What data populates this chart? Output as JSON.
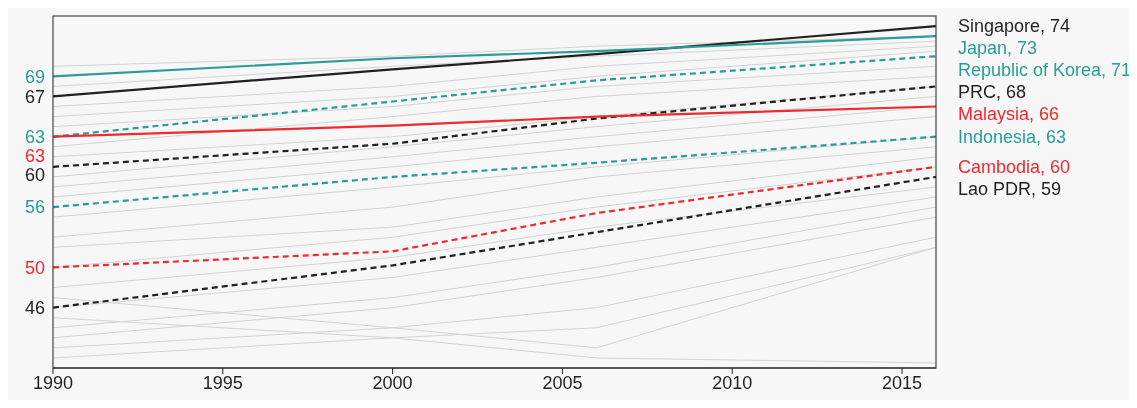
{
  "chart_data": {
    "type": "line",
    "x": [
      1990,
      2000,
      2006,
      2016
    ],
    "xlim": [
      1990,
      2016
    ],
    "xticks": [
      1990,
      1995,
      2000,
      2005,
      2010,
      2015
    ],
    "ylim": [
      40,
      75
    ],
    "tick_labels": "x",
    "marker": "none",
    "annotations": [
      "Singapore, 74",
      "Japan, 73",
      "Republic of Korea, 71",
      "PRC, 68",
      "Malaysia, 66",
      "Indonesia, 63",
      "Cambodia, 60",
      "Lao PDR, 59"
    ],
    "series": [
      {
        "color": "#d3d3d3",
        "values": [
          70,
          71,
          72,
          73
        ],
        "line_style": "solid"
      },
      {
        "color": "#d3d3d3",
        "values": [
          68,
          70,
          71,
          72.5
        ],
        "line_style": "solid"
      },
      {
        "color": "#d3d3d3",
        "values": [
          66,
          68,
          70,
          72
        ],
        "line_style": "solid"
      },
      {
        "color": "#d3d3d3",
        "values": [
          65,
          67,
          69,
          71.5
        ],
        "line_style": "solid"
      },
      {
        "color": "#d3d3d3",
        "values": [
          64,
          66,
          68,
          70
        ],
        "line_style": "solid"
      },
      {
        "color": "#d3d3d3",
        "values": [
          62,
          65,
          67,
          69
        ],
        "line_style": "solid"
      },
      {
        "color": "#d3d3d3",
        "values": [
          61,
          63,
          65,
          68
        ],
        "line_style": "solid"
      },
      {
        "color": "#d3d3d3",
        "values": [
          59,
          62,
          64,
          67
        ],
        "line_style": "solid"
      },
      {
        "color": "#d3d3d3",
        "values": [
          58,
          61,
          63,
          66
        ],
        "line_style": "solid"
      },
      {
        "color": "#d3d3d3",
        "values": [
          57,
          60,
          62,
          65
        ],
        "line_style": "solid"
      },
      {
        "color": "#d3d3d3",
        "values": [
          55,
          58,
          60,
          63
        ],
        "line_style": "solid"
      },
      {
        "color": "#d3d3d3",
        "values": [
          53,
          56,
          59,
          62
        ],
        "line_style": "solid"
      },
      {
        "color": "#d3d3d3",
        "values": [
          52,
          54,
          57,
          61
        ],
        "line_style": "solid"
      },
      {
        "color": "#d3d3d3",
        "values": [
          50,
          53,
          56,
          60
        ],
        "line_style": "solid"
      },
      {
        "color": "#d3d3d3",
        "values": [
          48,
          51,
          54,
          58
        ],
        "line_style": "solid"
      },
      {
        "color": "#d3d3d3",
        "values": [
          46,
          49,
          52,
          57
        ],
        "line_style": "solid"
      },
      {
        "color": "#d3d3d3",
        "values": [
          44,
          47,
          50,
          56
        ],
        "line_style": "solid"
      },
      {
        "color": "#d3d3d3",
        "values": [
          43,
          46,
          49,
          55
        ],
        "line_style": "solid"
      },
      {
        "color": "#d3d3d3",
        "values": [
          42,
          44,
          46,
          53
        ],
        "line_style": "solid"
      },
      {
        "color": "#d3d3d3",
        "values": [
          41,
          43,
          44,
          52
        ],
        "line_style": "solid"
      },
      {
        "color": "#d3d3d3",
        "values": [
          45,
          43,
          41,
          40.5
        ],
        "line_style": "solid"
      },
      {
        "color": "#d3d3d3",
        "values": [
          47,
          44,
          42,
          52
        ],
        "line_style": "solid"
      },
      {
        "color": "#231f20",
        "values": [
          67,
          69.7,
          71.2,
          74
        ],
        "value_labels": [
          "67",
          null,
          null,
          null
        ],
        "line_style": "solid"
      },
      {
        "color": "#2a9d9a",
        "values": [
          69,
          70.8,
          71.5,
          73
        ],
        "value_labels": [
          "69",
          null,
          null,
          null
        ],
        "line_style": "solid"
      },
      {
        "color": "#2a9d9a",
        "values": [
          63,
          66.5,
          68.6,
          71
        ],
        "value_labels": [
          "63",
          null,
          null,
          null
        ],
        "line_style": "dashed"
      },
      {
        "color": "#231f20",
        "values": [
          60,
          62.3,
          64.8,
          68
        ],
        "value_labels": [
          "60",
          null,
          null,
          null
        ],
        "line_style": "dashed"
      },
      {
        "color": "#ee2a2f",
        "values": [
          63,
          64.1,
          65,
          66
        ],
        "value_labels": [
          "63",
          null,
          null,
          null
        ],
        "line_style": "solid"
      },
      {
        "color": "#2a9d9a",
        "values": [
          56,
          59,
          60.4,
          63
        ],
        "value_labels": [
          "56",
          null,
          null,
          null
        ],
        "line_style": "dashed"
      },
      {
        "color": "#ee2a2f",
        "values": [
          50,
          51.6,
          55.4,
          60
        ],
        "value_labels": [
          "50",
          null,
          null,
          null
        ],
        "line_style": "dashed"
      },
      {
        "color": "#231f20",
        "values": [
          46,
          50.2,
          53.5,
          59
        ],
        "value_labels": [
          "46",
          null,
          null,
          null
        ],
        "line_style": "dashed"
      }
    ]
  }
}
